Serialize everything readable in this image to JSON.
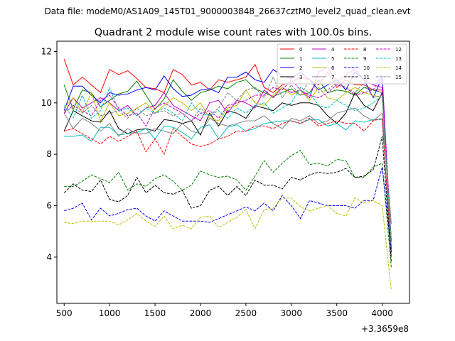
{
  "figure": {
    "suptitle": "Data file: modeM0/AS1A09_145T01_9000003848_26637cztM0_level2_quad_clean.evt"
  },
  "chart_data": {
    "type": "line",
    "title": "Quadrant 2 module wise count rates with 100.0s bins.",
    "xlabel": "",
    "ylabel": "",
    "x_offset_label": "+3.3659e8",
    "xlim": [
      420,
      4300
    ],
    "ylim": [
      2.2,
      12.4
    ],
    "xticks": [
      500,
      1000,
      1500,
      2000,
      2500,
      3000,
      3500,
      4000
    ],
    "yticks": [
      4,
      6,
      8,
      10,
      12
    ],
    "grid": false,
    "legend_position": "top-right",
    "x": [
      500,
      600,
      700,
      800,
      900,
      1000,
      1100,
      1200,
      1300,
      1400,
      1500,
      1600,
      1700,
      1800,
      1900,
      2000,
      2100,
      2200,
      2300,
      2400,
      2500,
      2600,
      2700,
      2800,
      2900,
      3000,
      3100,
      3200,
      3300,
      3400,
      3500,
      3600,
      3700,
      3800,
      3900,
      4000,
      4100
    ],
    "series": [
      {
        "name": "0",
        "color": "#ff0000",
        "dash": "solid",
        "values": [
          11.7,
          10.7,
          11.0,
          10.7,
          10.4,
          11.3,
          11.1,
          11.25,
          10.95,
          10.6,
          10.55,
          10.4,
          11.3,
          11.1,
          10.7,
          10.8,
          10.5,
          10.9,
          10.8,
          10.9,
          11.0,
          11.5,
          10.6,
          10.4,
          10.7,
          10.8,
          11.0,
          10.9,
          10.7,
          11.2,
          10.6,
          10.9,
          10.7,
          10.7,
          10.5,
          10.5,
          4.2
        ]
      },
      {
        "name": "1",
        "color": "#008000",
        "dash": "solid",
        "values": [
          10.7,
          9.75,
          10.5,
          10.4,
          9.85,
          10.1,
          10.35,
          10.45,
          10.85,
          10.3,
          9.75,
          10.15,
          10.9,
          10.45,
          10.1,
          10.4,
          10.5,
          10.65,
          10.55,
          10.8,
          10.9,
          10.55,
          10.4,
          10.25,
          10.4,
          10.55,
          10.3,
          10.4,
          10.9,
          10.4,
          10.5,
          10.45,
          10.3,
          10.6,
          10.5,
          10.4,
          4.6
        ]
      },
      {
        "name": "2",
        "color": "#0000ff",
        "dash": "solid",
        "values": [
          9.7,
          10.65,
          10.65,
          10.3,
          10.0,
          10.4,
          10.3,
          10.35,
          10.5,
          10.6,
          10.5,
          11.05,
          10.55,
          10.25,
          10.3,
          10.5,
          10.55,
          10.4,
          11.0,
          11.0,
          11.2,
          10.9,
          10.8,
          11.3,
          11.05,
          10.95,
          11.2,
          10.9,
          10.5,
          10.7,
          10.9,
          10.5,
          11.2,
          10.9,
          10.2,
          11.0,
          4.3
        ]
      },
      {
        "name": "3",
        "color": "#000000",
        "dash": "solid",
        "values": [
          8.9,
          9.7,
          9.5,
          9.3,
          9.25,
          9.7,
          9.0,
          8.8,
          8.95,
          9.0,
          8.9,
          9.35,
          9.3,
          9.2,
          9.3,
          8.75,
          9.6,
          9.1,
          9.7,
          9.6,
          9.4,
          9.9,
          9.8,
          9.7,
          10.0,
          9.9,
          10.0,
          10.0,
          9.9,
          9.5,
          9.2,
          9.6,
          10.4,
          9.9,
          9.7,
          10.4,
          4.6
        ]
      },
      {
        "name": "4",
        "color": "#bf00bf",
        "dash": "solid",
        "values": [
          9.6,
          10.2,
          9.8,
          10.0,
          10.2,
          10.0,
          9.7,
          9.9,
          9.5,
          9.8,
          9.9,
          10.4,
          9.9,
          9.7,
          9.5,
          9.3,
          10.0,
          10.1,
          9.6,
          10.1,
          10.0,
          9.8,
          10.5,
          10.2,
          10.6,
          10.4,
          10.5,
          10.2,
          11.2,
          11.4,
          10.8,
          11.1,
          11.3,
          10.9,
          10.7,
          10.6,
          4.6
        ]
      },
      {
        "name": "5",
        "color": "#00bfbf",
        "dash": "solid",
        "values": [
          8.7,
          8.7,
          8.75,
          8.5,
          9.05,
          9.05,
          8.75,
          8.8,
          8.85,
          9.0,
          8.6,
          9.1,
          9.05,
          8.85,
          8.6,
          9.05,
          9.15,
          8.6,
          9.05,
          9.15,
          8.9,
          9.0,
          9.2,
          9.25,
          9.3,
          9.3,
          9.2,
          9.35,
          9.35,
          9.1,
          9.2,
          8.95,
          9.3,
          9.25,
          9.35,
          9.35,
          4.1
        ]
      },
      {
        "name": "6",
        "color": "#bfbf00",
        "dash": "solid",
        "values": [
          9.8,
          10.2,
          9.6,
          10.4,
          9.3,
          10.0,
          9.5,
          9.6,
          9.8,
          10.0,
          9.6,
          9.9,
          10.2,
          10.0,
          9.7,
          10.0,
          9.4,
          9.3,
          9.8,
          9.9,
          10.5,
          10.0,
          9.9,
          10.3,
          10.6,
          10.3,
          10.5,
          10.1,
          10.6,
          10.2,
          10.1,
          10.4,
          10.6,
          10.4,
          10.3,
          10.2,
          4.5
        ]
      },
      {
        "name": "7",
        "color": "#808080",
        "dash": "solid",
        "values": [
          9.6,
          9.0,
          9.4,
          9.2,
          8.9,
          9.2,
          8.7,
          9.0,
          8.8,
          8.8,
          9.0,
          8.9,
          8.8,
          9.2,
          8.9,
          8.8,
          9.4,
          9.2,
          9.1,
          9.2,
          9.3,
          9.3,
          9.5,
          9.2,
          9.0,
          9.4,
          9.3,
          9.5,
          9.2,
          9.3,
          9.6,
          9.7,
          9.8,
          9.5,
          9.3,
          9.6,
          5.3
        ]
      },
      {
        "name": "8",
        "color": "#ff0000",
        "dash": "dashed",
        "values": [
          8.9,
          9.0,
          8.8,
          8.6,
          8.4,
          8.7,
          8.5,
          8.7,
          8.9,
          8.1,
          8.6,
          8.0,
          9.0,
          8.7,
          8.4,
          8.3,
          8.4,
          8.6,
          8.7,
          8.9,
          8.9,
          9.1,
          9.1,
          9.0,
          9.2,
          9.3,
          9.2,
          9.4,
          9.1,
          9.2,
          9.3,
          9.2,
          9.2,
          8.9,
          9.3,
          9.4,
          4.0
        ]
      },
      {
        "name": "9",
        "color": "#008000",
        "dash": "dashed",
        "values": [
          6.75,
          6.75,
          6.95,
          7.2,
          7.05,
          6.9,
          7.3,
          6.6,
          6.85,
          6.75,
          7.05,
          7.2,
          6.95,
          6.6,
          6.8,
          7.35,
          7.2,
          7.1,
          7.15,
          7.0,
          6.6,
          7.15,
          7.75,
          7.3,
          7.65,
          7.95,
          8.15,
          7.6,
          7.65,
          7.55,
          7.8,
          7.75,
          7.1,
          7.1,
          7.5,
          7.65,
          3.6
        ]
      },
      {
        "name": "10",
        "color": "#0000ff",
        "dash": "dashed",
        "values": [
          5.8,
          5.9,
          6.1,
          5.45,
          5.9,
          5.6,
          5.7,
          5.85,
          5.9,
          5.6,
          5.4,
          5.8,
          5.6,
          5.4,
          5.4,
          5.4,
          5.35,
          5.5,
          5.65,
          5.8,
          5.95,
          5.8,
          6.1,
          5.8,
          6.4,
          6.0,
          5.5,
          6.2,
          6.1,
          6.0,
          6.0,
          6.0,
          5.9,
          6.2,
          6.2,
          7.5,
          4.2
        ]
      },
      {
        "name": "11",
        "color": "#000000",
        "dash": "dashed",
        "values": [
          6.5,
          6.85,
          6.6,
          6.55,
          7.0,
          6.25,
          6.15,
          6.4,
          7.1,
          6.5,
          6.8,
          6.5,
          6.45,
          6.6,
          5.9,
          6.0,
          6.6,
          6.75,
          6.4,
          6.75,
          6.4,
          7.0,
          6.8,
          6.8,
          6.65,
          7.1,
          7.0,
          7.2,
          7.3,
          7.25,
          7.3,
          7.45,
          7.1,
          7.15,
          7.4,
          8.7,
          3.8
        ]
      },
      {
        "name": "12",
        "color": "#bf00bf",
        "dash": "dashed",
        "values": [
          9.6,
          9.9,
          9.7,
          9.5,
          10.1,
          10.3,
          9.8,
          9.5,
          9.6,
          9.1,
          9.8,
          10.0,
          9.8,
          9.6,
          9.3,
          9.6,
          9.7,
          9.4,
          9.9,
          10.0,
          10.1,
          10.3,
          10.3,
          10.6,
          10.5,
          10.9,
          10.5,
          10.3,
          10.2,
          10.4,
          10.7,
          10.6,
          10.3,
          10.4,
          10.5,
          11.1,
          4.6
        ]
      },
      {
        "name": "13",
        "color": "#00bfbf",
        "dash": "dashed",
        "values": [
          9.9,
          9.4,
          10.3,
          9.4,
          9.7,
          10.6,
          9.7,
          9.8,
          9.5,
          9.8,
          9.6,
          9.8,
          9.6,
          9.3,
          10.0,
          9.6,
          9.5,
          9.7,
          9.4,
          9.8,
          9.6,
          9.9,
          10.0,
          9.6,
          9.8,
          10.0,
          10.6,
          10.4,
          9.9,
          9.8,
          10.1,
          9.9,
          9.7,
          9.8,
          10.0,
          10.3,
          4.6
        ]
      },
      {
        "name": "14",
        "color": "#bfbf00",
        "dash": "dashed",
        "values": [
          5.35,
          5.3,
          5.4,
          5.4,
          5.4,
          5.4,
          5.25,
          5.45,
          5.7,
          5.4,
          5.2,
          5.6,
          5.1,
          5.25,
          5.1,
          5.55,
          5.6,
          5.15,
          5.35,
          5.55,
          5.85,
          5.1,
          5.85,
          5.9,
          6.3,
          6.3,
          5.95,
          5.8,
          5.9,
          6.0,
          5.7,
          5.6,
          6.3,
          6.1,
          6.2,
          6.0,
          2.7
        ]
      },
      {
        "name": "15",
        "color": "#808080",
        "dash": "dashed",
        "values": [
          9.7,
          9.8,
          9.6,
          9.9,
          9.5,
          9.6,
          9.7,
          9.4,
          9.8,
          9.5,
          9.6,
          9.7,
          9.5,
          9.6,
          9.3,
          9.8,
          9.5,
          9.8,
          10.4,
          10.1,
          10.5,
          10.6,
          10.2,
          11.0,
          10.2,
          10.7,
          10.3,
          10.9,
          10.4,
          10.5,
          10.8,
          10.6,
          10.4,
          10.8,
          10.2,
          10.3,
          4.6
        ]
      }
    ]
  }
}
